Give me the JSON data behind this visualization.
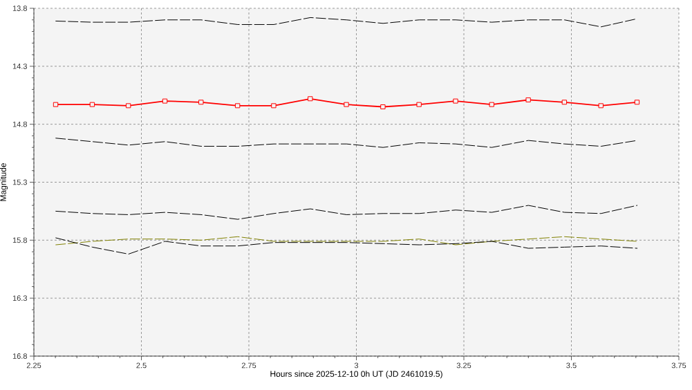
{
  "chart_data": {
    "type": "line",
    "xlabel": "Hours since 2025-12-10 0h UT (JD 2461019.5)",
    "ylabel": "Magnitude",
    "x": [
      2.301,
      2.386,
      2.47,
      2.555,
      2.639,
      2.724,
      2.808,
      2.893,
      2.977,
      3.062,
      3.146,
      3.231,
      3.315,
      3.4,
      3.484,
      3.569,
      3.653
    ],
    "series": [
      {
        "color": "#000000",
        "line_style": "dashed",
        "marker": "none",
        "values": [
          13.91,
          13.92,
          13.92,
          13.9,
          13.9,
          13.94,
          13.94,
          13.88,
          13.9,
          13.93,
          13.9,
          13.9,
          13.92,
          13.9,
          13.9,
          13.96,
          13.89
        ]
      },
      {
        "color": "#ff0000",
        "line_style": "solid",
        "marker": "square",
        "values": [
          14.63,
          14.63,
          14.64,
          14.6,
          14.61,
          14.64,
          14.64,
          14.58,
          14.63,
          14.65,
          14.63,
          14.6,
          14.63,
          14.59,
          14.61,
          14.64,
          14.61
        ]
      },
      {
        "color": "#000000",
        "line_style": "dashed",
        "marker": "none",
        "values": [
          14.92,
          14.95,
          14.98,
          14.95,
          14.99,
          14.99,
          14.97,
          14.97,
          14.97,
          15.0,
          14.96,
          14.97,
          15.0,
          14.94,
          14.97,
          14.99,
          14.94
        ]
      },
      {
        "color": "#000000",
        "line_style": "dashed",
        "marker": "none",
        "values": [
          15.55,
          15.57,
          15.58,
          15.56,
          15.58,
          15.62,
          15.57,
          15.53,
          15.58,
          15.57,
          15.57,
          15.54,
          15.56,
          15.5,
          15.56,
          15.57,
          15.5
        ]
      },
      {
        "color": "#808000",
        "line_style": "dashed",
        "marker": "none",
        "values": [
          15.84,
          15.81,
          15.79,
          15.79,
          15.8,
          15.77,
          15.81,
          15.81,
          15.81,
          15.81,
          15.79,
          15.84,
          15.81,
          15.79,
          15.77,
          15.79,
          15.81
        ]
      },
      {
        "color": "#000000",
        "line_style": "dashed",
        "marker": "none",
        "values": [
          15.78,
          15.86,
          15.92,
          15.81,
          15.85,
          15.85,
          15.82,
          15.82,
          15.82,
          15.83,
          15.84,
          15.83,
          15.81,
          15.87,
          15.86,
          15.85,
          15.87
        ]
      }
    ],
    "xlim": [
      2.25,
      3.75
    ],
    "xticks": [
      2.25,
      2.5,
      2.75,
      3,
      3.25,
      3.5,
      3.75
    ],
    "ylim": [
      16.8,
      13.8
    ],
    "yticks": [
      13.8,
      14.3,
      14.8,
      15.3,
      15.8,
      16.3,
      16.8
    ],
    "grid": true
  }
}
